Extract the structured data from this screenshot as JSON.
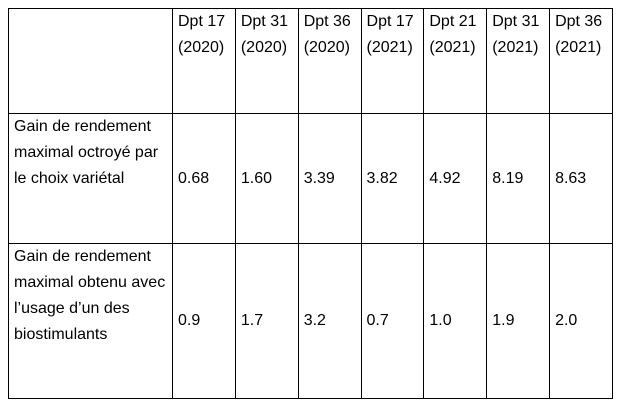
{
  "table": {
    "header": [
      "",
      "Dpt 17 (2020)",
      "Dpt 31 (2020)",
      "Dpt 36 (2020)",
      "Dpt 17 (2021)",
      "Dpt 21 (2021)",
      "Dpt 31 (2021)",
      "Dpt 36 (2021)"
    ],
    "rows": [
      [
        "Gain de rendement maximal octroyé par le choix variétal",
        "0.68",
        "1.60",
        "3.39",
        "3.82",
        "4.92",
        "8.19",
        "8.63"
      ],
      [
        "Gain de rendement maximal obtenu avec l’usage d’un des biostimulants",
        "0.9",
        "1.7",
        "3.2",
        "0.7",
        "1.0",
        "1.9",
        "2.0"
      ]
    ]
  }
}
